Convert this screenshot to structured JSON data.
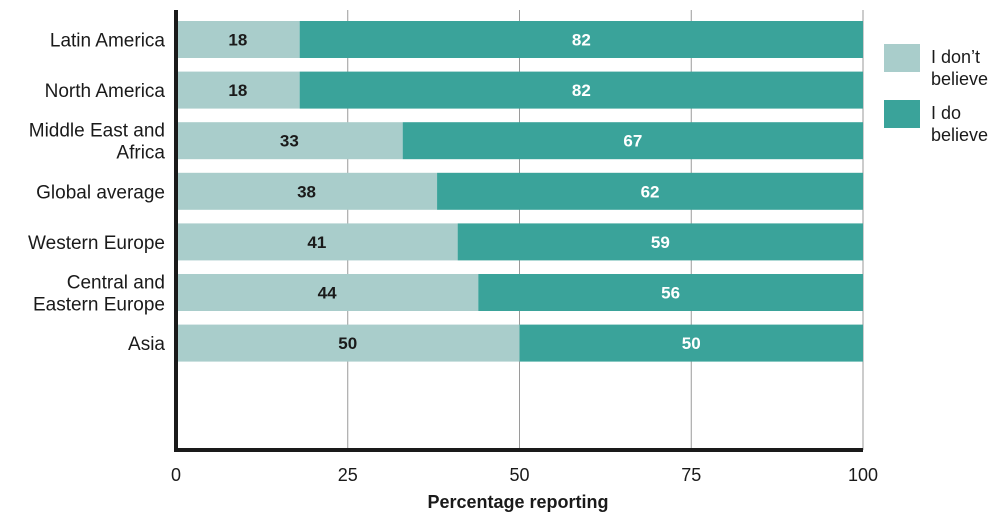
{
  "chart_data": {
    "type": "bar",
    "orientation": "horizontal",
    "stacked": true,
    "categories": [
      "Latin America",
      "North America",
      "Middle East and Africa",
      "Global average",
      "Western Europe",
      "Central and Eastern Europe",
      "Asia"
    ],
    "category_lines": [
      [
        "Latin America"
      ],
      [
        "North America"
      ],
      [
        "Middle East and",
        "Africa"
      ],
      [
        "Global average"
      ],
      [
        "Western Europe"
      ],
      [
        "Central and",
        "Eastern Europe"
      ],
      [
        "Asia"
      ]
    ],
    "series": [
      {
        "name": "I don’t believe",
        "legend_lines": [
          "I don’t",
          "believe"
        ],
        "color": "#a9cdcb",
        "label_color": "#1a1a1a",
        "values": [
          18,
          18,
          33,
          38,
          41,
          44,
          50
        ]
      },
      {
        "name": "I do believe",
        "legend_lines": [
          "I do",
          "believe"
        ],
        "color": "#3aa39a",
        "label_color": "#ffffff",
        "values": [
          82,
          82,
          67,
          62,
          59,
          56,
          50
        ]
      }
    ],
    "xlabel": "Percentage reporting",
    "xlim": [
      0,
      100
    ],
    "xticks": [
      0,
      25,
      50,
      75,
      100
    ],
    "grid": true,
    "legend_position": "right",
    "gridline_color": "#9a9a9a"
  }
}
